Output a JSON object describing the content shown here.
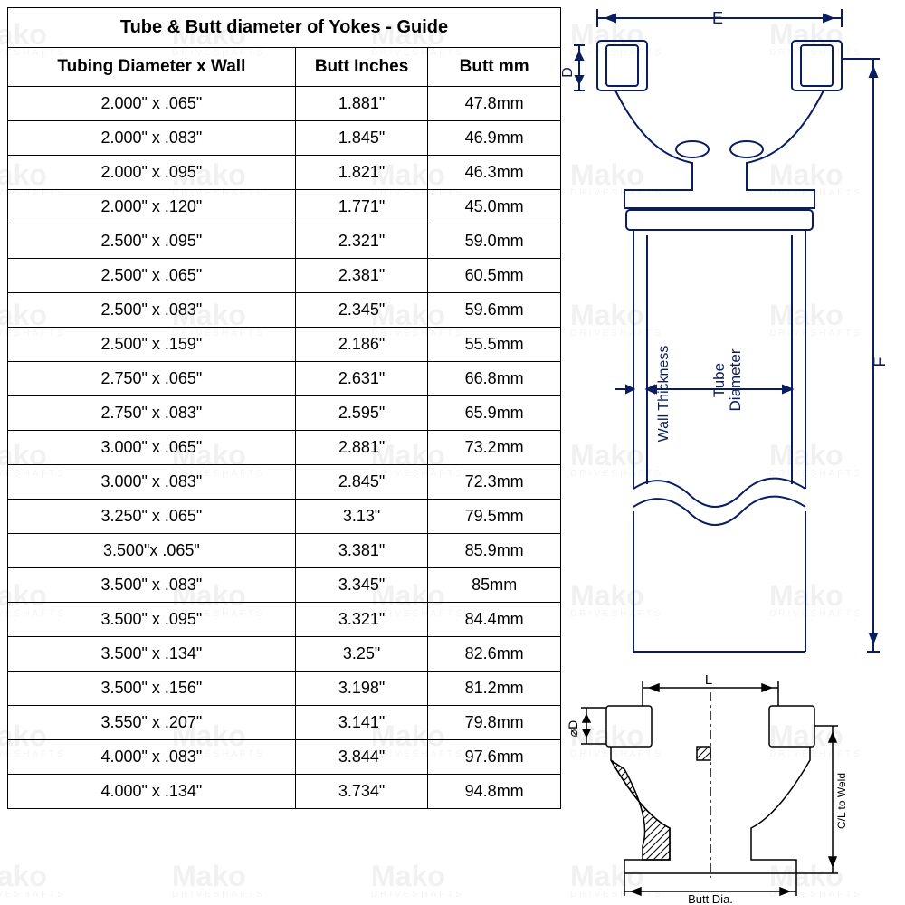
{
  "watermark": {
    "text": "Mako",
    "sub": "DRIVESHAFTS",
    "color": "#e2e2e2"
  },
  "table": {
    "title": "Tube & Butt diameter of Yokes - Guide",
    "columns": [
      "Tubing Diameter x Wall",
      "Butt Inches",
      "Butt mm"
    ],
    "col_widths": [
      "52%",
      "24%",
      "24%"
    ],
    "border_color": "#000000",
    "font_size": 18,
    "rows": [
      [
        "2.000\" x .065\"",
        "1.881\"",
        "47.8mm"
      ],
      [
        "2.000\" x .083\"",
        "1.845\"",
        "46.9mm"
      ],
      [
        "2.000\" x .095\"",
        "1.821\"",
        "46.3mm"
      ],
      [
        "2.000\" x .120\"",
        "1.771\"",
        "45.0mm"
      ],
      [
        "2.500\" x .095\"",
        "2.321\"",
        "59.0mm"
      ],
      [
        "2.500\" x .065\"",
        "2.381\"",
        "60.5mm"
      ],
      [
        "2.500\" x .083\"",
        "2.345\"",
        "59.6mm"
      ],
      [
        "2.500\" x .159\"",
        "2.186\"",
        "55.5mm"
      ],
      [
        "2.750\" x .065\"",
        "2.631\"",
        "66.8mm"
      ],
      [
        "2.750\" x .083\"",
        "2.595\"",
        "65.9mm"
      ],
      [
        "3.000\" x .065\"",
        "2.881\"",
        "73.2mm"
      ],
      [
        "3.000\" x .083\"",
        "2.845\"",
        "72.3mm"
      ],
      [
        "3.250\" x .065\"",
        "3.13\"",
        "79.5mm"
      ],
      [
        "3.500\"x .065\"",
        "3.381\"",
        "85.9mm"
      ],
      [
        "3.500\" x .083\"",
        "3.345\"",
        "85mm"
      ],
      [
        "3.500\" x .095\"",
        "3.321\"",
        "84.4mm"
      ],
      [
        "3.500\" x .134\"",
        "3.25\"",
        "82.6mm"
      ],
      [
        "3.500\" x .156\"",
        "3.198\"",
        "81.2mm"
      ],
      [
        "3.550\" x .207\"",
        "3.141\"",
        "79.8mm"
      ],
      [
        "4.000\" x .083\"",
        "3.844\"",
        "97.6mm"
      ],
      [
        "4.000\" x .134\"",
        "3.734\"",
        "94.8mm"
      ]
    ]
  },
  "diagram_top": {
    "labels": {
      "E": "E",
      "D": "D",
      "F": "F",
      "tube": "Tube Diameter",
      "wall": "Wall Thickness"
    },
    "line_color": "#0a1d60",
    "line_width": 2
  },
  "diagram_bottom": {
    "labels": {
      "L": "L",
      "D": "⌀D",
      "butt": "Butt Dia.",
      "cl": "C/L to Weld"
    },
    "line_color": "#000000",
    "hatch_spacing": 6
  }
}
